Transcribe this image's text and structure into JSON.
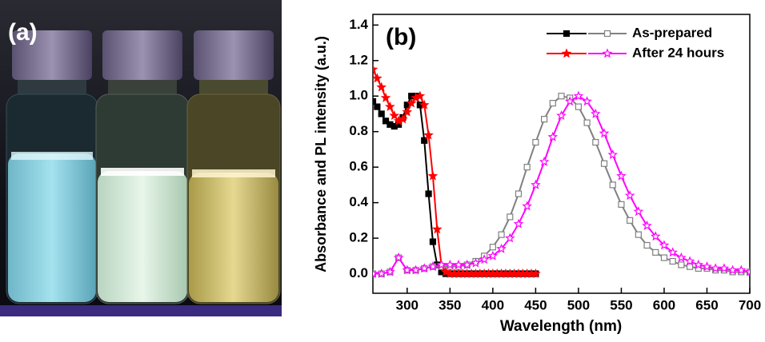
{
  "photo": {
    "label": "(a)"
  },
  "chart_data": {
    "type": "line",
    "panel_label": "(b)",
    "x_label": "Wavelength (nm)",
    "y_label": "Absorbance and PL intensity (a.u.)",
    "xlim": [
      260,
      700
    ],
    "xticks": [
      300,
      350,
      400,
      450,
      500,
      550,
      600,
      650,
      700
    ],
    "ylim": [
      -0.11,
      1.46
    ],
    "yticks": [
      {
        "value": 0,
        "label": "0.0"
      },
      0.2,
      0.4,
      0.6,
      0.8,
      {
        "value": 1,
        "label": "1.0"
      },
      1.2,
      1.4
    ],
    "series": [
      {
        "color": "#000000",
        "marker": "square",
        "filled": true,
        "x": [
          260,
          265,
          270,
          275,
          280,
          285,
          290,
          295,
          300,
          305,
          310,
          315,
          320,
          325,
          330,
          335,
          340,
          345,
          350,
          355,
          360,
          365,
          370,
          375,
          380,
          385,
          390,
          395,
          400,
          405,
          410,
          415,
          420,
          425,
          430,
          435,
          440,
          445,
          450
        ],
        "values": [
          0.97,
          0.94,
          0.9,
          0.86,
          0.84,
          0.83,
          0.84,
          0.88,
          0.95,
          1.0,
          1.0,
          0.95,
          0.75,
          0.45,
          0.18,
          0.05,
          0.01,
          0,
          0,
          0,
          0,
          0,
          0,
          0,
          0,
          0,
          0,
          0,
          0,
          0,
          0,
          0,
          0,
          0,
          0,
          0,
          0,
          0,
          0
        ]
      },
      {
        "name": "As-prepared",
        "color": "#808080",
        "marker": "square",
        "filled": false,
        "x": [
          260,
          270,
          280,
          290,
          300,
          310,
          320,
          330,
          340,
          350,
          360,
          370,
          380,
          390,
          400,
          410,
          420,
          430,
          440,
          450,
          460,
          470,
          480,
          490,
          500,
          510,
          520,
          530,
          540,
          550,
          560,
          570,
          580,
          590,
          600,
          610,
          620,
          630,
          640,
          650,
          660,
          670,
          680,
          690,
          700
        ],
        "values": [
          0,
          0,
          0.01,
          0.09,
          0.02,
          0.02,
          0.03,
          0.04,
          0.04,
          0.04,
          0.04,
          0.05,
          0.07,
          0.1,
          0.15,
          0.22,
          0.32,
          0.45,
          0.6,
          0.74,
          0.87,
          0.96,
          1.0,
          0.99,
          0.94,
          0.85,
          0.74,
          0.62,
          0.5,
          0.39,
          0.3,
          0.22,
          0.16,
          0.12,
          0.09,
          0.07,
          0.05,
          0.04,
          0.03,
          0.03,
          0.02,
          0.02,
          0.01,
          0.01,
          0.01
        ]
      },
      {
        "color": "#ff0000",
        "marker": "star",
        "filled": true,
        "x": [
          260,
          265,
          270,
          275,
          280,
          285,
          290,
          295,
          300,
          305,
          310,
          315,
          320,
          325,
          330,
          335,
          340,
          345,
          350,
          355,
          360,
          365,
          370,
          375,
          380,
          385,
          390,
          395,
          400,
          405,
          410,
          415,
          420,
          425,
          430,
          435,
          440,
          445,
          450
        ],
        "values": [
          1.15,
          1.1,
          1.05,
          0.99,
          0.94,
          0.89,
          0.86,
          0.87,
          0.91,
          0.96,
          0.99,
          1.0,
          0.95,
          0.78,
          0.55,
          0.25,
          0.05,
          0.01,
          0,
          0,
          0,
          0,
          0,
          0,
          0,
          0,
          0,
          0,
          0,
          0,
          0,
          0,
          0,
          0,
          0,
          0,
          0,
          0,
          0
        ]
      },
      {
        "name": "After 24 hours",
        "color": "#ff00ff",
        "marker": "star",
        "filled": false,
        "x": [
          260,
          270,
          280,
          290,
          300,
          310,
          320,
          330,
          340,
          350,
          360,
          370,
          380,
          390,
          400,
          410,
          420,
          430,
          440,
          450,
          460,
          470,
          480,
          490,
          500,
          510,
          520,
          530,
          540,
          550,
          560,
          570,
          580,
          590,
          600,
          610,
          620,
          630,
          640,
          650,
          660,
          670,
          680,
          690,
          700
        ],
        "values": [
          0,
          0,
          0.01,
          0.09,
          0.02,
          0.02,
          0.03,
          0.04,
          0.05,
          0.05,
          0.05,
          0.05,
          0.06,
          0.08,
          0.1,
          0.14,
          0.2,
          0.28,
          0.38,
          0.5,
          0.63,
          0.77,
          0.89,
          0.97,
          1.0,
          0.97,
          0.9,
          0.79,
          0.67,
          0.55,
          0.44,
          0.35,
          0.27,
          0.21,
          0.16,
          0.12,
          0.09,
          0.07,
          0.05,
          0.04,
          0.03,
          0.03,
          0.02,
          0.02,
          0.01
        ]
      }
    ]
  }
}
